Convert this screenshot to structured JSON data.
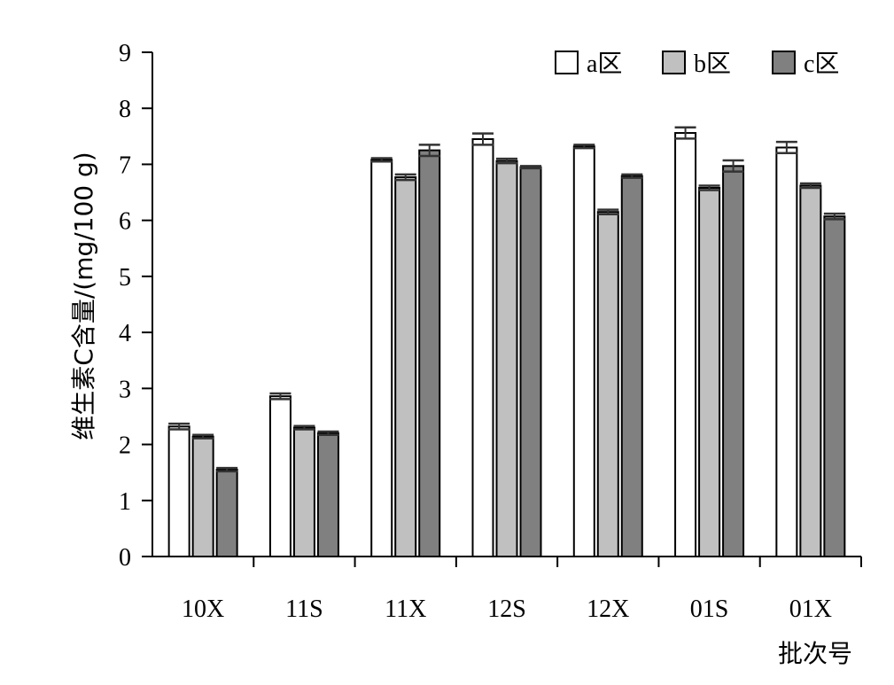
{
  "chart_data": {
    "type": "bar",
    "title": "",
    "xlabel": "批次号",
    "ylabel": "维生素C含量/(mg/100 g)",
    "ylim": [
      0,
      9
    ],
    "yticks": [
      0,
      1,
      2,
      3,
      4,
      5,
      6,
      7,
      8,
      9
    ],
    "categories": [
      "10X",
      "11S",
      "11X",
      "12S",
      "12X",
      "01S",
      "01X"
    ],
    "series": [
      {
        "name": "a区",
        "color": "#ffffff",
        "values": [
          2.32,
          2.86,
          7.08,
          7.45,
          7.32,
          7.56,
          7.3
        ],
        "errors": [
          0.05,
          0.05,
          0.03,
          0.1,
          0.03,
          0.1,
          0.1
        ]
      },
      {
        "name": "b区",
        "color": "#c0c0c0",
        "values": [
          2.14,
          2.3,
          6.77,
          7.06,
          6.15,
          6.58,
          6.62
        ],
        "errors": [
          0.03,
          0.03,
          0.05,
          0.04,
          0.04,
          0.04,
          0.04
        ]
      },
      {
        "name": "c区",
        "color": "#808080",
        "values": [
          1.55,
          2.2,
          7.25,
          6.95,
          6.79,
          6.97,
          6.07
        ],
        "errors": [
          0.03,
          0.03,
          0.1,
          0.02,
          0.03,
          0.1,
          0.05
        ]
      }
    ],
    "legend_position": "top-right",
    "grid": false,
    "error_bars": true
  }
}
